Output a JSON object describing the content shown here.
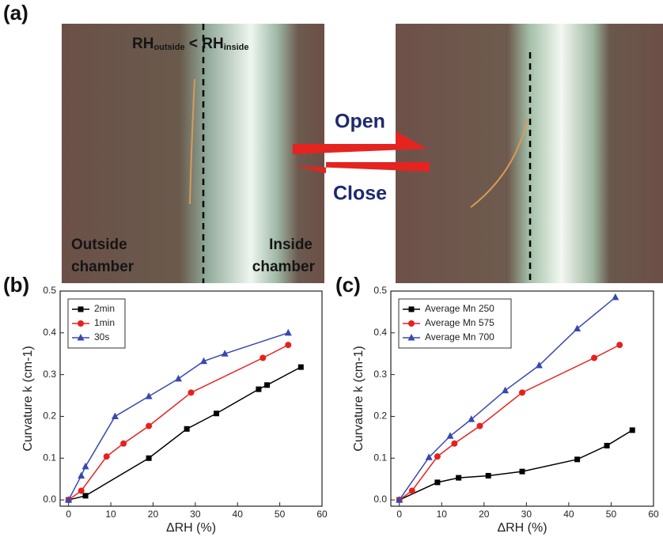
{
  "panel_a": {
    "label": "(a)",
    "rh_label": [
      "RH",
      "outside",
      " < RH",
      "inside"
    ],
    "outside": [
      "Outside",
      "chamber"
    ],
    "inside": [
      "Inside",
      "chamber"
    ],
    "open": "Open",
    "close": "Close"
  },
  "chart_data": [
    {
      "type": "line",
      "panel": "(b)",
      "xlabel": "ΔRH (%)",
      "ylabel": "Curvature k (cm-1)",
      "xlim": [
        -2,
        60
      ],
      "ylim": [
        -0.015,
        0.5
      ],
      "xticks": [
        0,
        10,
        20,
        30,
        40,
        50,
        60
      ],
      "yticks": [
        {
          "value": 0,
          "label": "0.0"
        },
        0.1,
        0.2,
        0.3,
        0.4,
        0.5
      ],
      "legend": "upper left",
      "series": [
        {
          "name": "2min",
          "color": "#000000",
          "marker": "square",
          "x": [
            0,
            4,
            19,
            28,
            35,
            45,
            47,
            55
          ],
          "values": [
            0,
            0.01,
            0.1,
            0.17,
            0.207,
            0.265,
            0.275,
            0.318
          ]
        },
        {
          "name": "1min",
          "color": "#e8201c",
          "marker": "circle",
          "x": [
            0,
            3,
            9,
            13,
            19,
            29,
            46,
            52
          ],
          "values": [
            0,
            0.022,
            0.104,
            0.135,
            0.177,
            0.257,
            0.34,
            0.371
          ]
        },
        {
          "name": "30s",
          "color": "#3848b0",
          "marker": "triangle",
          "x": [
            0,
            3,
            4,
            11,
            19,
            26,
            32,
            37,
            52
          ],
          "values": [
            0,
            0.058,
            0.08,
            0.2,
            0.248,
            0.29,
            0.332,
            0.35,
            0.4
          ]
        }
      ]
    },
    {
      "type": "line",
      "panel": "(c)",
      "xlabel": "ΔRH (%)",
      "ylabel": "Curvature k (cm-1)",
      "xlim": [
        -2,
        60
      ],
      "ylim": [
        -0.015,
        0.5
      ],
      "xticks": [
        0,
        10,
        20,
        30,
        40,
        50,
        60
      ],
      "yticks": [
        {
          "value": 0,
          "label": "0.0"
        },
        0.1,
        0.2,
        0.3,
        0.4,
        0.5
      ],
      "legend": "upper left",
      "series": [
        {
          "name": "Average Mn 250",
          "color": "#000000",
          "marker": "square",
          "x": [
            0,
            9,
            14,
            21,
            29,
            42,
            49,
            55
          ],
          "values": [
            0,
            0.042,
            0.053,
            0.058,
            0.068,
            0.097,
            0.13,
            0.167
          ]
        },
        {
          "name": "Average Mn 575",
          "color": "#e8201c",
          "marker": "circle",
          "x": [
            0,
            3,
            9,
            13,
            19,
            29,
            46,
            52
          ],
          "values": [
            0,
            0.022,
            0.104,
            0.135,
            0.177,
            0.257,
            0.34,
            0.371
          ]
        },
        {
          "name": "Average Mn 700",
          "color": "#3848b0",
          "marker": "triangle",
          "x": [
            0,
            7,
            12,
            17,
            25,
            33,
            42,
            51
          ],
          "values": [
            0,
            0.102,
            0.153,
            0.193,
            0.262,
            0.322,
            0.41,
            0.485
          ]
        }
      ]
    }
  ]
}
